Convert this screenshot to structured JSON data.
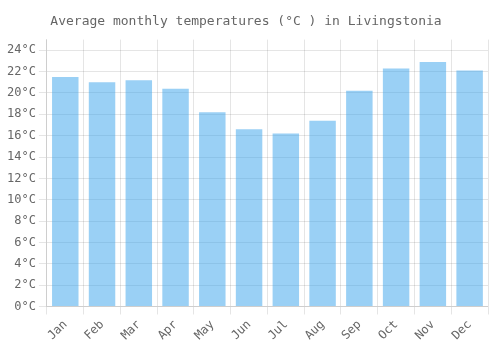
{
  "chart_data": {
    "type": "bar",
    "title": "Average monthly temperatures (°C ) in Livingstonia",
    "categories": [
      "Jan",
      "Feb",
      "Mar",
      "Apr",
      "May",
      "Jun",
      "Jul",
      "Aug",
      "Sep",
      "Oct",
      "Nov",
      "Dec"
    ],
    "values": [
      21.5,
      21.0,
      21.2,
      20.4,
      18.2,
      16.6,
      16.2,
      17.4,
      20.2,
      22.3,
      22.9,
      22.1
    ],
    "ylim": [
      0,
      25
    ],
    "yticks": [
      {
        "value": 0,
        "label": "0°C"
      },
      {
        "value": 2,
        "label": "2°C"
      },
      {
        "value": 4,
        "label": "4°C"
      },
      {
        "value": 6,
        "label": "6°C"
      },
      {
        "value": 8,
        "label": "8°C"
      },
      {
        "value": 10,
        "label": "10°C"
      },
      {
        "value": 12,
        "label": "12°C"
      },
      {
        "value": 14,
        "label": "14°C"
      },
      {
        "value": 16,
        "label": "16°C"
      },
      {
        "value": 18,
        "label": "18°C"
      },
      {
        "value": 20,
        "label": "20°C"
      },
      {
        "value": 22,
        "label": "22°C"
      },
      {
        "value": 24,
        "label": "24°C"
      }
    ],
    "grid": true
  }
}
